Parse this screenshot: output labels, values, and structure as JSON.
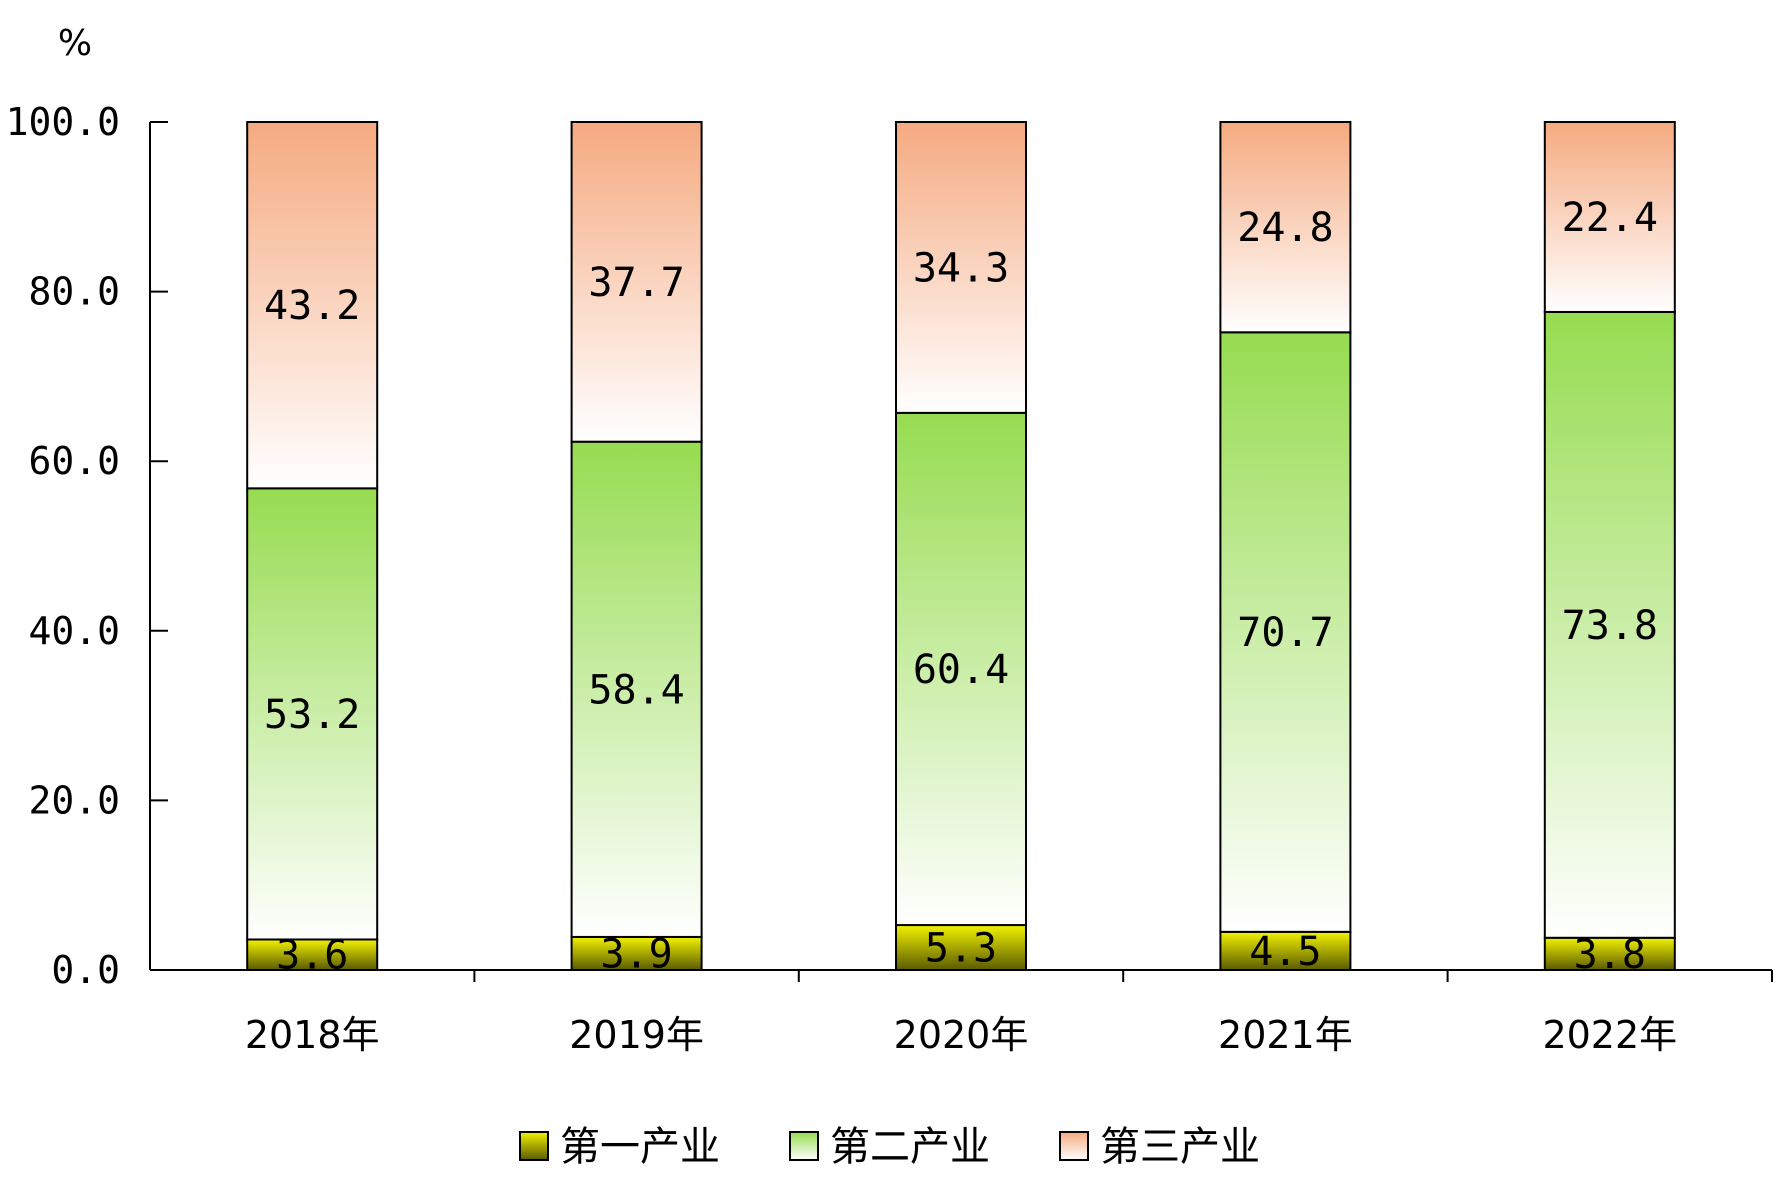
{
  "chart_data": {
    "type": "bar",
    "stacked": true,
    "y_unit": "%",
    "categories": [
      "2018年",
      "2019年",
      "2020年",
      "2021年",
      "2022年"
    ],
    "series": [
      {
        "name": "第一产业",
        "values": [
          3.6,
          3.9,
          5.3,
          4.5,
          3.8
        ]
      },
      {
        "name": "第二产业",
        "values": [
          53.2,
          58.4,
          60.4,
          70.7,
          73.8
        ]
      },
      {
        "name": "第三产业",
        "values": [
          43.2,
          37.7,
          34.3,
          24.8,
          22.4
        ]
      }
    ],
    "ylim": [
      0,
      100
    ],
    "y_ticks": [
      "0.0",
      "20.0",
      "40.0",
      "60.0",
      "80.0",
      "100.0"
    ],
    "legend_position": "bottom",
    "grid": false
  },
  "colors": {
    "primary_top": "#f2f200",
    "primary_bottom": "#5a5a00",
    "secondary_top": "#96dc50",
    "secondary_bottom": "#ffffff",
    "tertiary_top": "#f5aa80",
    "tertiary_bottom": "#ffffff"
  }
}
